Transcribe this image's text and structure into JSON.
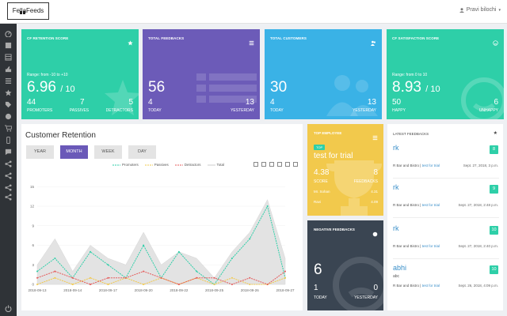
{
  "header": {
    "brand": "FellaFeeds",
    "user": "Pravi bilochi"
  },
  "colors": {
    "teal": "#2ecfa8",
    "purple": "#6c5bb8",
    "blue": "#3ab2e6",
    "yellow": "#f2c94c",
    "dark": "#3a4552",
    "sidebar": "#2f3337"
  },
  "cards": [
    {
      "title": "CF RETENTION SCORE",
      "icon": "star-icon",
      "range": "Range: from -10 to +10",
      "value": "6.96",
      "denom": "/ 10",
      "left_num": "44",
      "mid_num": "7",
      "right_num": "5",
      "left_label": "PROMOTERS",
      "mid_label": "PASSIVES",
      "right_label": "DETRACTORS"
    },
    {
      "title": "TOTAL FEEDBACKS",
      "icon": "list-icon",
      "value": "56",
      "left_num": "4",
      "right_num": "13",
      "left_label": "TODAY",
      "right_label": "YESTERDAY"
    },
    {
      "title": "TOTAL CUSTOMERS",
      "icon": "users-icon",
      "value": "30",
      "left_num": "4",
      "right_num": "13",
      "left_label": "TODAY",
      "right_label": "YESTERDAY"
    },
    {
      "title": "CF SATISFACTION SCORE",
      "icon": "smile-icon",
      "range": "Range: from 0 to 10",
      "value": "8.93",
      "denom": "/ 10",
      "left_num": "50",
      "right_num": "6",
      "left_label": "HAPPY",
      "right_label": "UNHAPPY"
    }
  ],
  "retention": {
    "title": "Customer Retention",
    "tabs": [
      "YEAR",
      "MONTH",
      "WEEK",
      "DAY"
    ],
    "active_tab": "MONTH",
    "legend": [
      "Promoters",
      "Passives",
      "Detractors",
      "Total"
    ]
  },
  "chart_data": {
    "type": "line",
    "ylim": [
      0,
      16
    ],
    "yticks": [
      "0",
      "3",
      "6",
      "9",
      "12",
      "15"
    ],
    "x": [
      "2018-09-13",
      "2018-09-14",
      "2018-09-15",
      "2018-09-16",
      "2018-09-17",
      "2018-09-18",
      "2018-09-19",
      "2018-09-20",
      "2018-09-21",
      "2018-09-22",
      "2018-09-23",
      "2018-09-24",
      "2018-09-25",
      "2018-09-26",
      "2018-09-27"
    ],
    "xtick_labels": [
      "2018-09-13",
      "2018-09-14",
      "2018-09-17",
      "2018-09-20",
      "2018-09-22",
      "2018-09-25",
      "2018-09-26",
      "2018-09-27"
    ],
    "series": [
      {
        "name": "Promoters",
        "color": "#2ecfa8",
        "values": [
          2,
          4,
          1,
          5,
          3,
          1,
          6,
          1,
          5,
          2,
          0,
          4,
          7,
          12,
          1
        ]
      },
      {
        "name": "Passives",
        "color": "#f2c94c",
        "values": [
          0,
          1,
          0,
          1,
          0,
          1,
          0,
          1,
          0,
          1,
          0,
          1,
          0,
          0,
          1
        ]
      },
      {
        "name": "Detractors",
        "color": "#e55b5b",
        "values": [
          1,
          2,
          1,
          0,
          1,
          1,
          2,
          1,
          0,
          1,
          1,
          0,
          1,
          0,
          2
        ]
      },
      {
        "name": "Total",
        "color": "#d9d9d9",
        "values": [
          3,
          7,
          2,
          6,
          4,
          3,
          8,
          3,
          5,
          4,
          1,
          5,
          8,
          13,
          4
        ]
      }
    ]
  },
  "employee": {
    "title": "TOP EMPLOYEE",
    "tag": "TOP",
    "name": "test for trial",
    "score": "4.38",
    "feedbacks": "8",
    "score_label": "SCORE",
    "feedbacks_label": "FEEDBACKS",
    "rows": [
      {
        "name": "Mr. Sohan",
        "value": "4.31"
      },
      {
        "name": "Ravi",
        "value": "4.09"
      }
    ]
  },
  "negative": {
    "title": "NEGATIVE FEEDBACKS",
    "value": "6",
    "left_num": "1",
    "right_num": "0",
    "left_label": "TODAY",
    "right_label": "YESTERDAY"
  },
  "latest": {
    "title": "LATEST FEEDBACKS",
    "items": [
      {
        "name": "rk",
        "badge": "8",
        "source": "R Bar and Bistro",
        "location": "test for trial",
        "date": "Sept. 27, 2018, 3 p.m."
      },
      {
        "name": "rk",
        "badge": "9",
        "source": "R Bar and Bistro",
        "location": "test for trial",
        "date": "Sept. 27, 2018, 2:48 p.m."
      },
      {
        "name": "rk",
        "badge": "10",
        "source": "R Bar and Bistro",
        "location": "test for trial",
        "date": "Sept. 27, 2018, 2:40 p.m."
      },
      {
        "name": "abhi",
        "sub": "abc",
        "badge": "10",
        "source": "R Bar and Bistro",
        "location": "test for trial",
        "date": "Sept. 26, 2018, 4:09 p.m."
      }
    ]
  }
}
